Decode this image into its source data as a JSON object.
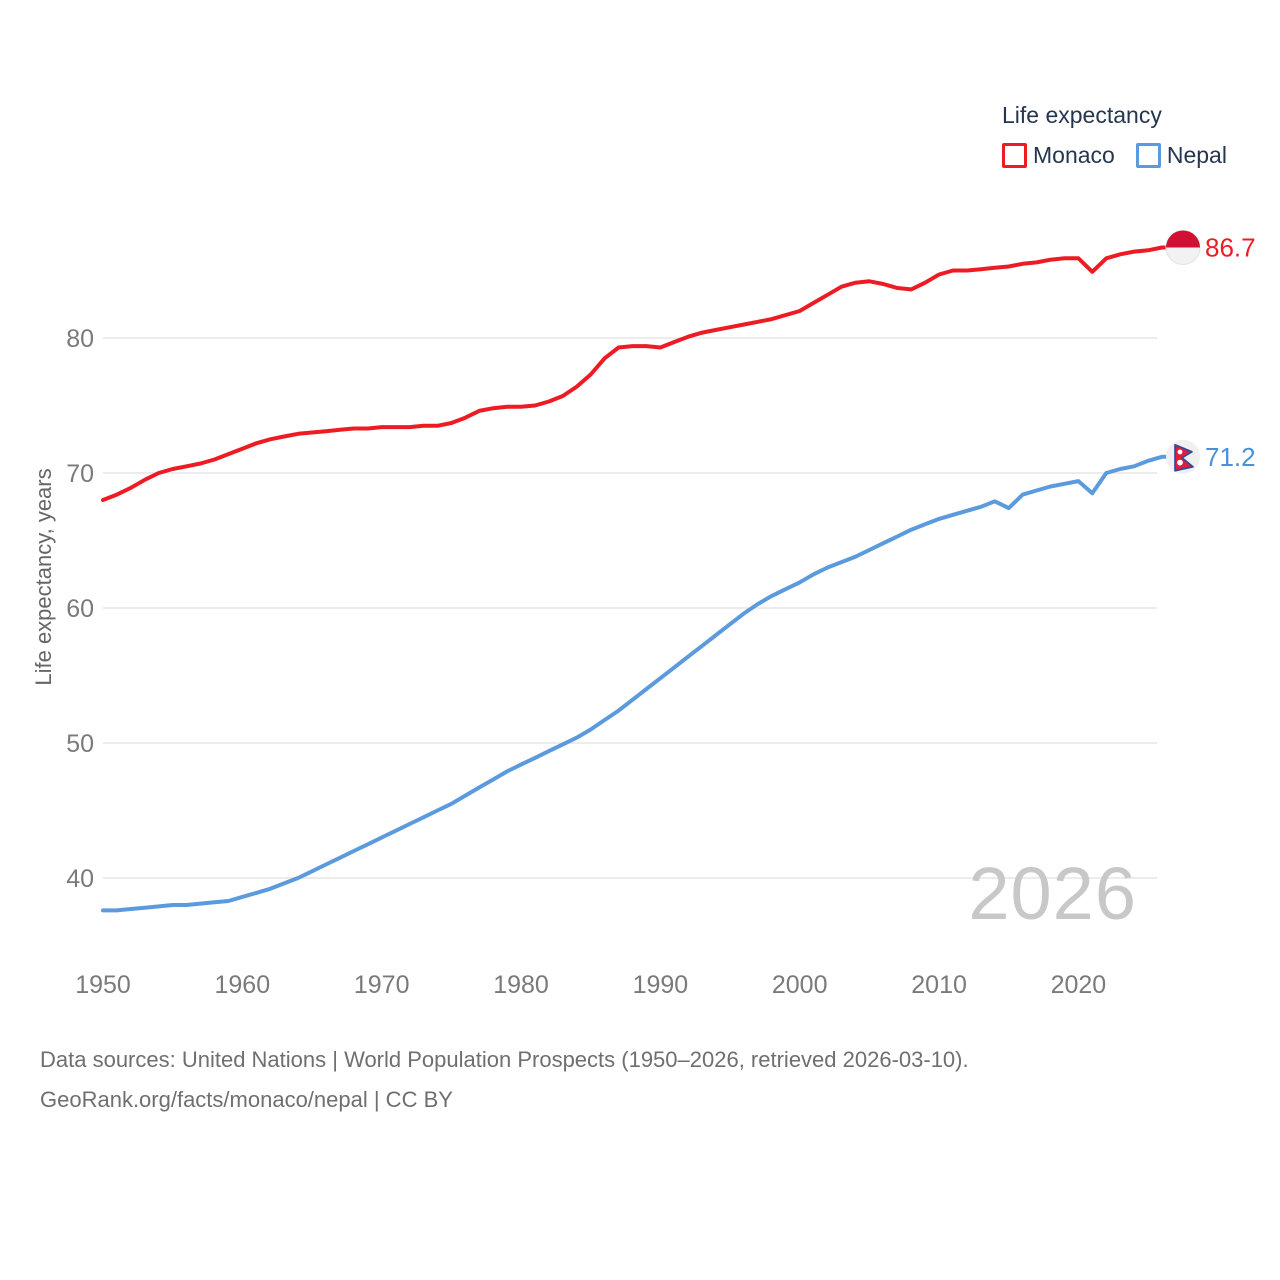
{
  "legend": {
    "title": "Life expectancy",
    "items": [
      {
        "label": "Monaco",
        "color": "#ed1c24"
      },
      {
        "label": "Nepal",
        "color": "#5c9ade"
      }
    ]
  },
  "watermark": "2026",
  "footer": {
    "line1": "Data sources: United Nations | World Population Prospects (1950–2026, retrieved 2026-03-10).",
    "line2": "GeoRank.org/facts/monaco/nepal | CC BY"
  },
  "chart_data": {
    "type": "line",
    "title": "Life expectancy",
    "ylabel": "Life expectancy, years",
    "x_start": 1950,
    "x_end": 2026,
    "x_ticks": [
      1950,
      1960,
      1970,
      1980,
      1990,
      2000,
      2010,
      2020
    ],
    "y_ticks": [
      40,
      50,
      60,
      70,
      80
    ],
    "ylim": [
      36.5,
      88
    ],
    "grid": "horizontal",
    "legend_position": "top-right",
    "series": [
      {
        "name": "Monaco",
        "color": "#ed1c24",
        "end_label": "86.7",
        "end_label_color": "#ed1c24",
        "flag_icon": "monaco-circular-flag-icon",
        "values": [
          68.0,
          68.4,
          68.9,
          69.5,
          70.0,
          70.3,
          70.5,
          70.7,
          71.0,
          71.4,
          71.8,
          72.2,
          72.5,
          72.7,
          72.9,
          73.0,
          73.1,
          73.2,
          73.3,
          73.3,
          73.4,
          73.4,
          73.4,
          73.5,
          73.5,
          73.7,
          74.1,
          74.6,
          74.8,
          74.9,
          74.9,
          75.0,
          75.3,
          75.7,
          76.4,
          77.3,
          78.5,
          79.3,
          79.4,
          79.4,
          79.3,
          79.7,
          80.1,
          80.4,
          80.6,
          80.8,
          81.0,
          81.2,
          81.4,
          81.7,
          82.0,
          82.6,
          83.2,
          83.8,
          84.1,
          84.2,
          84.0,
          83.7,
          83.6,
          84.1,
          84.7,
          85.0,
          85.0,
          85.1,
          85.2,
          85.3,
          85.5,
          85.6,
          85.8,
          85.9,
          85.9,
          84.9,
          85.9,
          86.2,
          86.4,
          86.5,
          86.7
        ]
      },
      {
        "name": "Nepal",
        "color": "#5c9ade",
        "end_label": "71.2",
        "end_label_color": "#4a91d9",
        "flag_icon": "nepal-circular-flag-icon",
        "values": [
          37.6,
          37.6,
          37.7,
          37.8,
          37.9,
          38.0,
          38.0,
          38.1,
          38.2,
          38.3,
          38.6,
          38.9,
          39.2,
          39.6,
          40.0,
          40.5,
          41.0,
          41.5,
          42.0,
          42.5,
          43.0,
          43.5,
          44.0,
          44.5,
          45.0,
          45.5,
          46.1,
          46.7,
          47.3,
          47.9,
          48.4,
          48.9,
          49.4,
          49.9,
          50.4,
          51.0,
          51.7,
          52.4,
          53.2,
          54.0,
          54.8,
          55.6,
          56.4,
          57.2,
          58.0,
          58.8,
          59.6,
          60.3,
          60.9,
          61.4,
          61.9,
          62.5,
          63.0,
          63.4,
          63.8,
          64.3,
          64.8,
          65.3,
          65.8,
          66.2,
          66.6,
          66.9,
          67.2,
          67.5,
          67.9,
          67.4,
          68.4,
          68.7,
          69.0,
          69.2,
          69.4,
          68.5,
          70.0,
          70.3,
          70.5,
          70.9,
          71.2
        ]
      }
    ]
  }
}
